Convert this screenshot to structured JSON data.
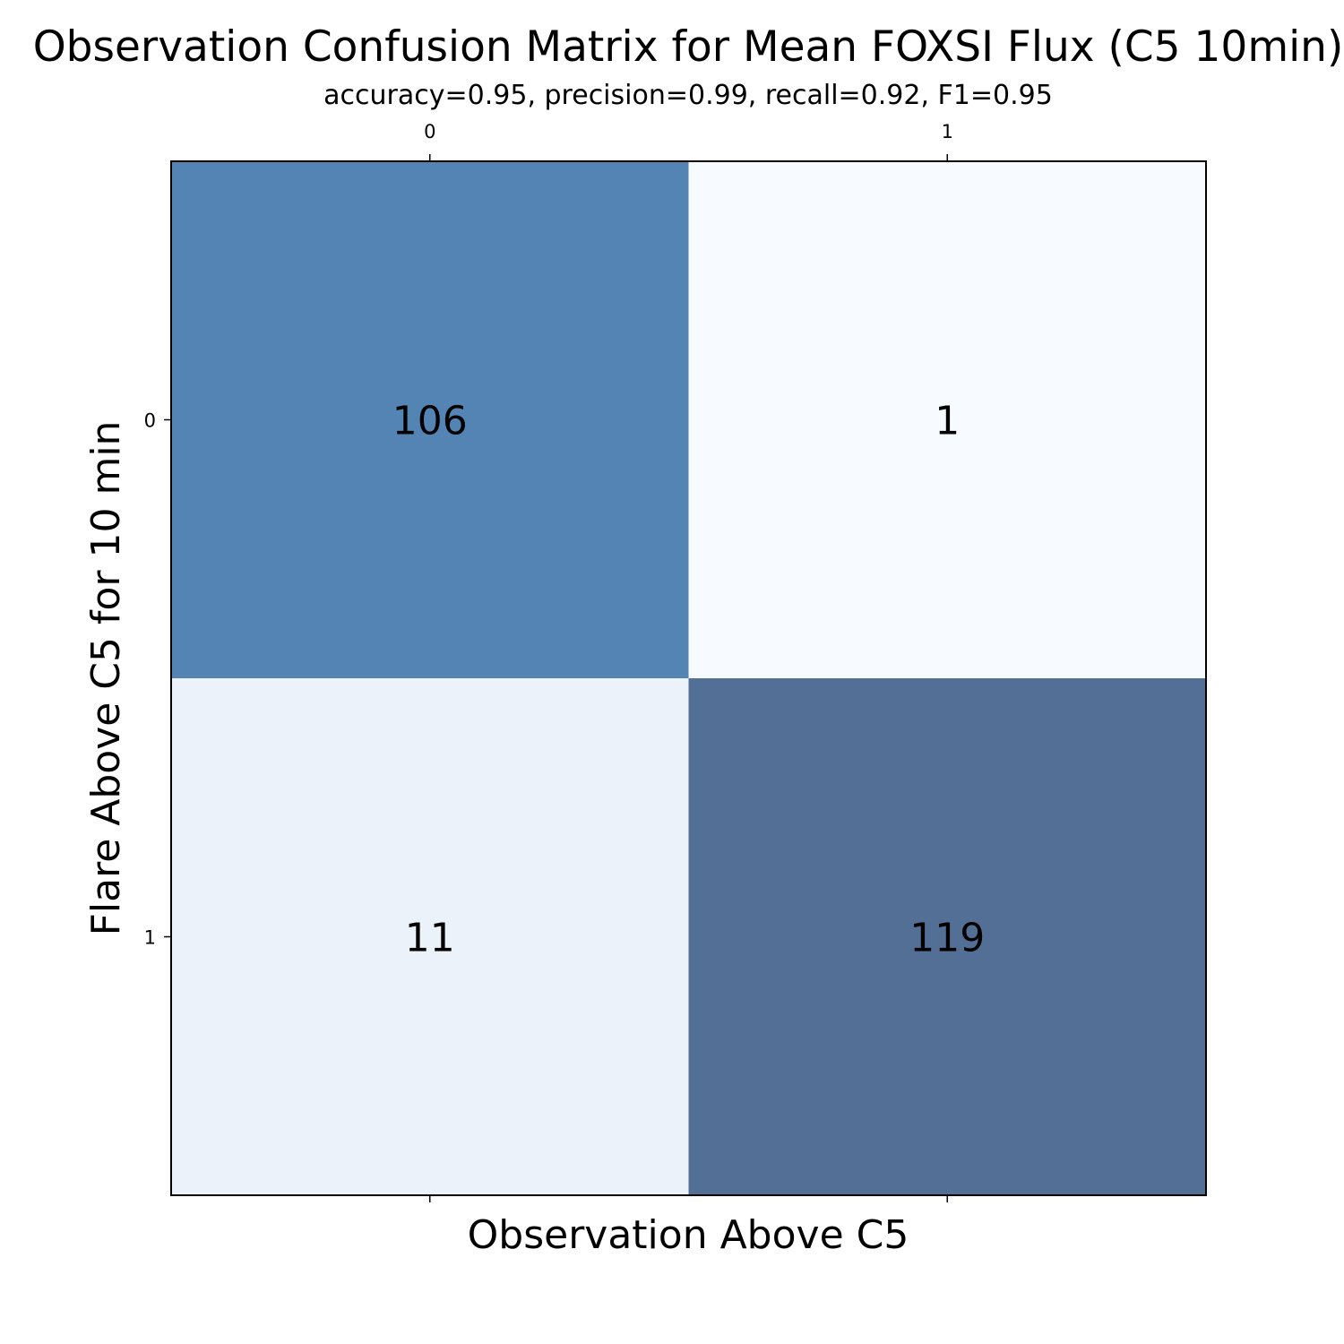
{
  "chart_data": {
    "type": "heatmap",
    "title": "Observation Confusion Matrix for Mean FOXSI Flux (C5 10min)",
    "subtitle": "accuracy=0.95, precision=0.99, recall=0.92, F1=0.95",
    "xlabel": "Observation Above C5",
    "ylabel": "Flare Above C5 for 10 min",
    "x_categories": [
      "0",
      "1"
    ],
    "y_categories": [
      "0",
      "1"
    ],
    "values": [
      [
        106,
        1
      ],
      [
        11,
        119
      ]
    ],
    "colormap": "Blues",
    "cell_colors": [
      [
        "#5384b3",
        "#f7fbff"
      ],
      [
        "#ebf2fa",
        "#536f96"
      ]
    ],
    "grid": false,
    "x_tick_position": "top-and-bottom"
  }
}
